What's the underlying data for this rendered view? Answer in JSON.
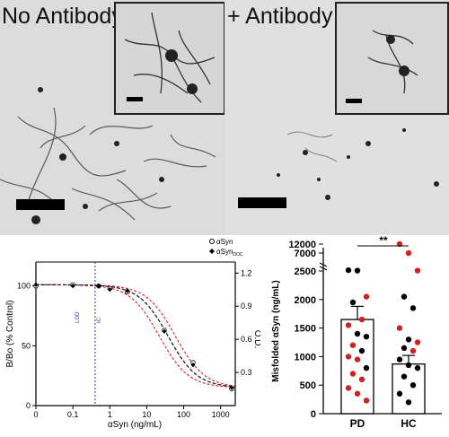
{
  "panel_a": {
    "left_label": "No Antibody",
    "right_label": "+ Antibody"
  },
  "chart_data": [
    {
      "type": "scatter",
      "xlabel": "αSyn (ng/mL)",
      "ylabel": "B/Bo (% Control)",
      "y2label": "O.D.",
      "xscale": "log",
      "xlim": [
        0.01,
        2500
      ],
      "ylim": [
        0,
        120
      ],
      "y2lim": [
        0,
        1.3
      ],
      "x_ticks": [
        "0",
        "0.1",
        "1",
        "10",
        "100",
        "1000"
      ],
      "y_ticks": [
        "0",
        "50",
        "100"
      ],
      "y2_ticks": [
        "0.3",
        "0.6",
        "0.9",
        "1.2"
      ],
      "legend": [
        "αSyn",
        "αSyn"
      ],
      "legend_subscript": "DOC",
      "annotations": [
        "LOD",
        "IC"
      ],
      "series": [
        {
          "name": "αSyn",
          "x": [
            0.01,
            0.1,
            0.5,
            1,
            3,
            30,
            180,
            2000
          ],
          "y": [
            100,
            101,
            100,
            98,
            95,
            63,
            36,
            14
          ],
          "marker": "open-circle"
        },
        {
          "name": "αSyn",
          "x": [
            0.01,
            0.1,
            0.5,
            1,
            3,
            30,
            180,
            2000
          ],
          "y": [
            101,
            100,
            100,
            97,
            96,
            62,
            34,
            15
          ],
          "marker": "filled-diamond"
        }
      ],
      "fit_color": "#222222",
      "ci_color": "#dd2222",
      "lod_color": "#2233cc"
    },
    {
      "type": "bar",
      "ylabel": "Misfolded αSyn (ng/mL)",
      "categories": [
        "PD",
        "HC"
      ],
      "values": [
        1650,
        870
      ],
      "error": [
        230,
        150
      ],
      "y_ticks_lower": [
        "0",
        "500",
        "1000",
        "1500",
        "2000",
        "2500"
      ],
      "y_ticks_upper": [
        "7000",
        "12000"
      ],
      "significance": "**",
      "points": [
        {
          "group": "PD",
          "values": [
            2700,
            2600,
            2050,
            1950,
            1650,
            1550,
            1400,
            1350,
            1200,
            1100,
            1000,
            950,
            800,
            700,
            600,
            450,
            350,
            230
          ],
          "colors": [
            "#000",
            "#000",
            "#d12020",
            "#000",
            "#d12020",
            "#d12020",
            "#000",
            "#000",
            "#d12020",
            "#000",
            "#d12020",
            "#d12020",
            "#000",
            "#d12020",
            "#d12020",
            "#d12020",
            "#d12020",
            "#d12020"
          ]
        },
        {
          "group": "HC",
          "values": [
            12000,
            7000,
            2600,
            2050,
            1850,
            1500,
            1300,
            1250,
            1150,
            1100,
            950,
            850,
            800,
            650,
            500,
            350,
            200
          ],
          "colors": [
            "#d12020",
            "#d12020",
            "#d12020",
            "#000",
            "#000",
            "#d12020",
            "#000",
            "#d12020",
            "#000",
            "#d12020",
            "#000",
            "#000",
            "#000",
            "#000",
            "#000",
            "#000",
            "#000"
          ]
        }
      ],
      "point_colors": {
        "PD_patient": "#000000",
        "other": "#d12020"
      }
    }
  ]
}
